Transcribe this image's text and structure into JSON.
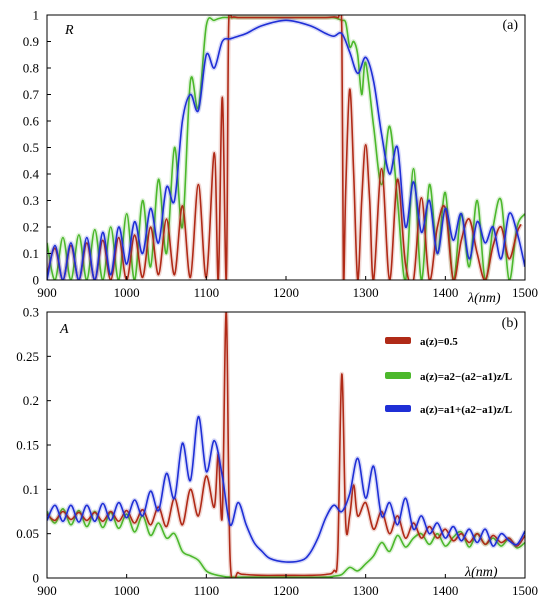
{
  "chart_data": [
    {
      "type": "line",
      "panel_label": "(a)",
      "ylabel": "R",
      "xlabel": "λ(nm)",
      "xlim": [
        900,
        1500
      ],
      "ylim": [
        0,
        1
      ],
      "xticks": [
        "900",
        "1000",
        "1100",
        "1200",
        "1300",
        "1400",
        "1500"
      ],
      "yticks": [
        "0",
        "0.1",
        "0.2",
        "0.3",
        "0.4",
        "0.5",
        "0.6",
        "0.7",
        "0.8",
        "0.9",
        "1"
      ],
      "grid": false,
      "series": [
        {
          "name": "a(z)=0.5",
          "color": "#b02a17",
          "x": [
            900,
            910,
            920,
            930,
            940,
            950,
            960,
            970,
            980,
            990,
            1000,
            1010,
            1020,
            1030,
            1040,
            1050,
            1060,
            1070,
            1080,
            1090,
            1100,
            1110,
            1115,
            1120,
            1125,
            1128,
            1132,
            1140,
            1150,
            1170,
            1200,
            1230,
            1250,
            1265,
            1270,
            1272,
            1275,
            1280,
            1285,
            1290,
            1295,
            1300,
            1305,
            1310,
            1320,
            1330,
            1340,
            1350,
            1360,
            1370,
            1380,
            1390,
            1400,
            1410,
            1420,
            1430,
            1440,
            1450,
            1460,
            1470,
            1480,
            1490,
            1495
          ],
          "values": [
            0.02,
            0.12,
            0.0,
            0.13,
            0.0,
            0.14,
            0.0,
            0.15,
            0.0,
            0.16,
            0.0,
            0.17,
            0.01,
            0.2,
            0.02,
            0.23,
            0.02,
            0.28,
            0.01,
            0.36,
            0.01,
            0.48,
            0.0,
            0.69,
            0.0,
            0.95,
            0.99,
            0.99,
            0.99,
            0.99,
            0.99,
            0.99,
            0.99,
            0.99,
            0.95,
            0.0,
            0.35,
            0.72,
            0.4,
            0.0,
            0.3,
            0.51,
            0.3,
            0.0,
            0.42,
            0.0,
            0.38,
            0.06,
            0.0,
            0.31,
            0.0,
            0.2,
            0.27,
            0.0,
            0.15,
            0.23,
            0.1,
            0.0,
            0.13,
            0.2,
            0.08,
            0.18,
            0.21
          ]
        },
        {
          "name": "a(z)=a2−(a2−a1)z/L",
          "color": "#4cb82c",
          "x": [
            900,
            910,
            920,
            930,
            940,
            950,
            960,
            970,
            980,
            990,
            1000,
            1010,
            1020,
            1030,
            1040,
            1050,
            1060,
            1070,
            1080,
            1090,
            1100,
            1110,
            1120,
            1130,
            1150,
            1200,
            1250,
            1260,
            1270,
            1275,
            1280,
            1285,
            1290,
            1295,
            1300,
            1310,
            1320,
            1330,
            1340,
            1350,
            1360,
            1370,
            1380,
            1390,
            1400,
            1410,
            1420,
            1430,
            1440,
            1450,
            1460,
            1470,
            1480,
            1490,
            1500
          ],
          "values": [
            0.14,
            0.0,
            0.16,
            0.0,
            0.17,
            0.0,
            0.19,
            0.0,
            0.2,
            0.0,
            0.25,
            0.0,
            0.3,
            0.05,
            0.38,
            0.1,
            0.5,
            0.2,
            0.75,
            0.65,
            0.96,
            0.98,
            0.99,
            0.99,
            0.99,
            0.99,
            0.99,
            0.99,
            0.98,
            0.97,
            0.88,
            0.9,
            0.85,
            0.7,
            0.82,
            0.58,
            0.36,
            0.58,
            0.3,
            0.0,
            0.42,
            0.0,
            0.36,
            0.1,
            0.33,
            0.0,
            0.25,
            0.05,
            0.3,
            0.0,
            0.2,
            0.3,
            0.0,
            0.2,
            0.25
          ]
        },
        {
          "name": "a(z)=a1+(a2−a1)z/L",
          "color": "#1f2fd6",
          "x": [
            900,
            910,
            920,
            930,
            940,
            950,
            960,
            970,
            980,
            990,
            1000,
            1010,
            1020,
            1030,
            1040,
            1050,
            1060,
            1070,
            1080,
            1090,
            1100,
            1110,
            1120,
            1130,
            1140,
            1150,
            1170,
            1200,
            1230,
            1250,
            1260,
            1270,
            1280,
            1290,
            1300,
            1310,
            1320,
            1330,
            1340,
            1350,
            1360,
            1370,
            1380,
            1390,
            1400,
            1410,
            1420,
            1430,
            1440,
            1450,
            1460,
            1470,
            1480,
            1490,
            1500
          ],
          "values": [
            0.0,
            0.13,
            0.0,
            0.14,
            0.0,
            0.16,
            0.0,
            0.18,
            0.02,
            0.2,
            0.06,
            0.22,
            0.1,
            0.27,
            0.14,
            0.35,
            0.3,
            0.6,
            0.7,
            0.64,
            0.85,
            0.8,
            0.9,
            0.91,
            0.92,
            0.93,
            0.96,
            0.98,
            0.96,
            0.93,
            0.92,
            0.93,
            0.86,
            0.78,
            0.84,
            0.75,
            0.55,
            0.4,
            0.5,
            0.2,
            0.37,
            0.18,
            0.3,
            0.1,
            0.27,
            0.15,
            0.25,
            0.08,
            0.22,
            0.14,
            0.2,
            0.08,
            0.25,
            0.18,
            0.05
          ]
        }
      ]
    },
    {
      "type": "line",
      "panel_label": "(b)",
      "ylabel": "A",
      "xlabel": "λ(nm)",
      "xlim": [
        900,
        1500
      ],
      "ylim": [
        0,
        0.3
      ],
      "xticks": [
        "900",
        "1000",
        "1100",
        "1200",
        "1300",
        "1400",
        "1500"
      ],
      "yticks": [
        "0",
        "0.05",
        "0.1",
        "0.15",
        "0.2",
        "0.25",
        "0.3"
      ],
      "grid": false,
      "legend_position": "top-right",
      "series": [
        {
          "name": "a(z)=0.5",
          "color": "#b02a17",
          "x": [
            900,
            910,
            920,
            930,
            940,
            950,
            960,
            970,
            980,
            990,
            1000,
            1010,
            1020,
            1030,
            1040,
            1050,
            1060,
            1070,
            1080,
            1090,
            1100,
            1110,
            1115,
            1120,
            1125,
            1130,
            1140,
            1150,
            1170,
            1200,
            1230,
            1250,
            1260,
            1265,
            1270,
            1275,
            1280,
            1285,
            1290,
            1300,
            1310,
            1320,
            1330,
            1340,
            1350,
            1360,
            1370,
            1380,
            1390,
            1400,
            1410,
            1420,
            1430,
            1440,
            1450,
            1460,
            1470,
            1480,
            1490,
            1500
          ],
          "values": [
            0.072,
            0.065,
            0.075,
            0.066,
            0.074,
            0.065,
            0.074,
            0.064,
            0.075,
            0.064,
            0.076,
            0.062,
            0.077,
            0.06,
            0.08,
            0.058,
            0.09,
            0.06,
            0.1,
            0.07,
            0.115,
            0.08,
            0.14,
            0.07,
            0.3,
            0.02,
            0.006,
            0.004,
            0.003,
            0.003,
            0.003,
            0.004,
            0.008,
            0.03,
            0.23,
            0.06,
            0.07,
            0.105,
            0.07,
            0.085,
            0.055,
            0.075,
            0.05,
            0.07,
            0.045,
            0.062,
            0.045,
            0.058,
            0.045,
            0.055,
            0.042,
            0.05,
            0.04,
            0.05,
            0.038,
            0.048,
            0.04,
            0.045,
            0.036,
            0.048
          ]
        },
        {
          "name": "a(z)=a2−(a2−a1)z/L",
          "color": "#4cb82c",
          "x": [
            900,
            910,
            920,
            930,
            940,
            950,
            960,
            970,
            980,
            990,
            1000,
            1010,
            1020,
            1030,
            1040,
            1050,
            1060,
            1070,
            1080,
            1090,
            1100,
            1110,
            1120,
            1130,
            1150,
            1200,
            1250,
            1260,
            1270,
            1280,
            1290,
            1300,
            1310,
            1320,
            1330,
            1340,
            1350,
            1360,
            1370,
            1380,
            1390,
            1400,
            1410,
            1420,
            1430,
            1440,
            1450,
            1460,
            1470,
            1480,
            1490,
            1500
          ],
          "values": [
            0.075,
            0.062,
            0.078,
            0.06,
            0.076,
            0.058,
            0.075,
            0.057,
            0.074,
            0.056,
            0.072,
            0.052,
            0.07,
            0.048,
            0.062,
            0.045,
            0.05,
            0.03,
            0.025,
            0.02,
            0.008,
            0.004,
            0.002,
            0.001,
            0.001,
            0.001,
            0.001,
            0.002,
            0.004,
            0.012,
            0.008,
            0.016,
            0.025,
            0.04,
            0.03,
            0.048,
            0.035,
            0.045,
            0.05,
            0.038,
            0.05,
            0.036,
            0.046,
            0.052,
            0.035,
            0.05,
            0.038,
            0.045,
            0.036,
            0.044,
            0.034,
            0.04
          ]
        },
        {
          "name": "a(z)=a1+(a2−a1)z/L",
          "color": "#1f2fd6",
          "x": [
            900,
            910,
            920,
            930,
            940,
            950,
            960,
            970,
            980,
            990,
            1000,
            1010,
            1020,
            1030,
            1040,
            1050,
            1060,
            1070,
            1080,
            1090,
            1100,
            1110,
            1120,
            1130,
            1140,
            1150,
            1160,
            1170,
            1180,
            1200,
            1220,
            1230,
            1240,
            1250,
            1260,
            1270,
            1280,
            1290,
            1300,
            1310,
            1320,
            1330,
            1340,
            1350,
            1360,
            1370,
            1380,
            1390,
            1400,
            1410,
            1420,
            1430,
            1440,
            1450,
            1460,
            1470,
            1480,
            1490,
            1500
          ],
          "values": [
            0.065,
            0.082,
            0.064,
            0.082,
            0.063,
            0.082,
            0.064,
            0.084,
            0.065,
            0.085,
            0.068,
            0.088,
            0.07,
            0.098,
            0.076,
            0.118,
            0.09,
            0.152,
            0.11,
            0.182,
            0.12,
            0.155,
            0.115,
            0.06,
            0.085,
            0.06,
            0.04,
            0.03,
            0.022,
            0.018,
            0.02,
            0.028,
            0.045,
            0.068,
            0.082,
            0.075,
            0.095,
            0.135,
            0.09,
            0.126,
            0.07,
            0.085,
            0.06,
            0.09,
            0.055,
            0.07,
            0.05,
            0.062,
            0.045,
            0.058,
            0.042,
            0.055,
            0.04,
            0.055,
            0.036,
            0.05,
            0.042,
            0.038,
            0.053
          ]
        }
      ]
    }
  ]
}
